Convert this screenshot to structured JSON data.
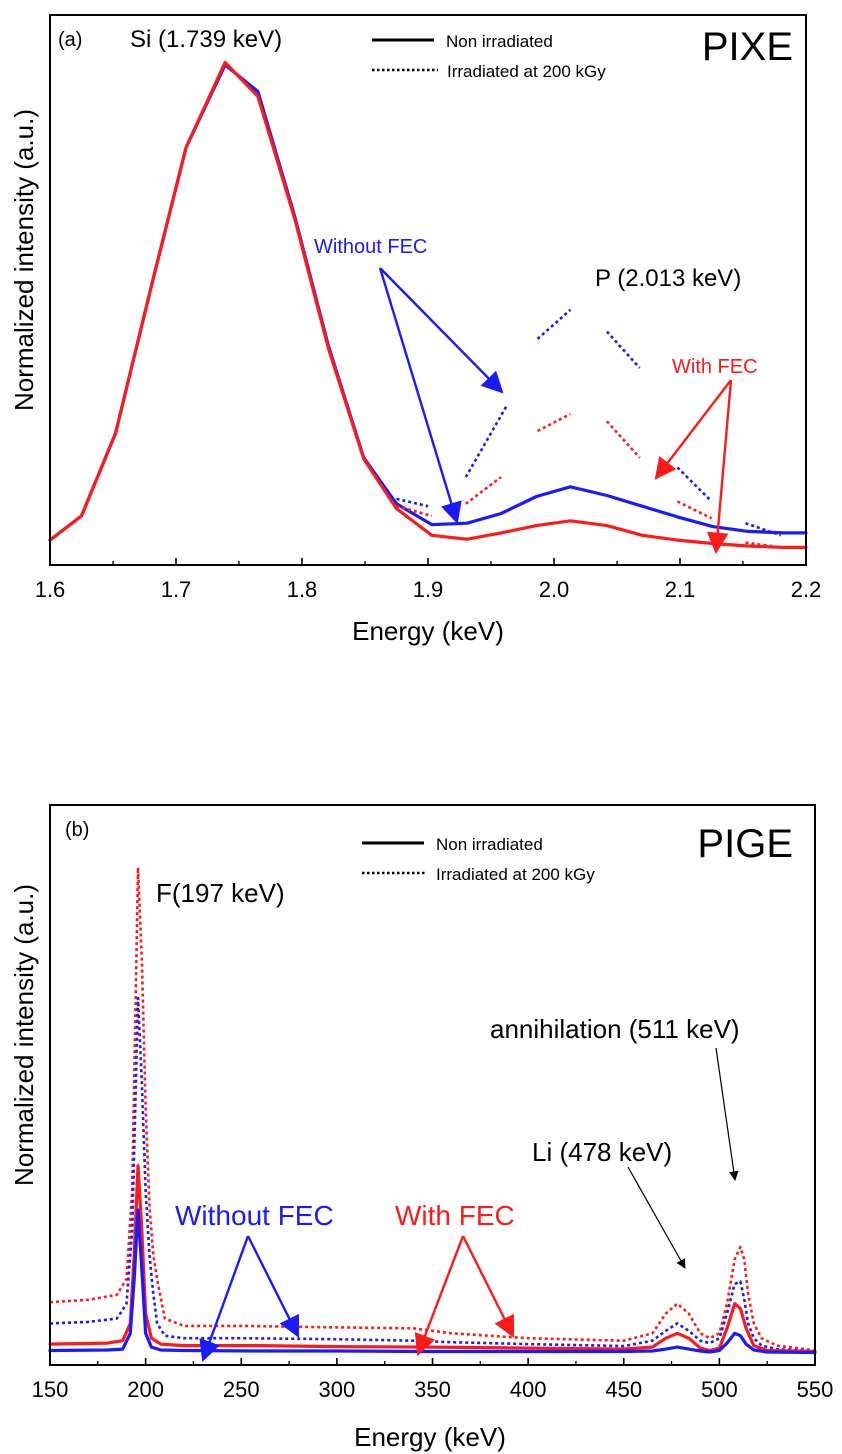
{
  "chart_data": [
    {
      "type": "line",
      "panel_label": "(a)",
      "technique_label": "PIXE",
      "xlabel": "Energy (keV)",
      "ylabel": "Normalized intensity (a.u.)",
      "xlim": [
        1.6,
        2.2
      ],
      "ylim": [
        0,
        1
      ],
      "xticks": [
        1.6,
        1.7,
        1.8,
        1.9,
        2.0,
        2.1,
        2.2
      ],
      "xtick_labels": [
        "1.6",
        "1.7",
        "1.8",
        "1.9",
        "2.0",
        "2.1",
        "2.2"
      ],
      "y_tick_labels_shown": false,
      "legend": {
        "placement": "top-center",
        "items": [
          {
            "label": "Non irradiated",
            "style": "solid"
          },
          {
            "label": "Irradiated at 200 kGy",
            "style": "dotted"
          }
        ]
      },
      "colors": {
        "without_fec": "#1a1aff",
        "with_fec": "#ff1a1a"
      },
      "series": [
        {
          "group": "Without FEC",
          "style": "solid",
          "color": "#1a1aff",
          "x": [
            1.6,
            1.625,
            1.652,
            1.681,
            1.708,
            1.739,
            1.765,
            1.794,
            1.821,
            1.849,
            1.875,
            1.903,
            1.931,
            1.958,
            1.986,
            2.013,
            2.042,
            2.07,
            2.098,
            2.126,
            2.154,
            2.182,
            2.2
          ],
          "y": [
            0.01,
            0.06,
            0.23,
            0.54,
            0.82,
            0.99,
            0.935,
            0.68,
            0.41,
            0.18,
            0.085,
            0.042,
            0.045,
            0.065,
            0.1,
            0.12,
            0.102,
            0.08,
            0.058,
            0.038,
            0.028,
            0.025,
            0.025
          ]
        },
        {
          "group": "With FEC",
          "style": "solid",
          "color": "#ff1a1a",
          "x": [
            1.6,
            1.625,
            1.652,
            1.681,
            1.708,
            1.739,
            1.765,
            1.794,
            1.821,
            1.849,
            1.875,
            1.903,
            1.931,
            1.958,
            1.986,
            2.013,
            2.042,
            2.07,
            2.098,
            2.126,
            2.154,
            2.182,
            2.2
          ],
          "y": [
            0.01,
            0.06,
            0.23,
            0.54,
            0.82,
            0.995,
            0.925,
            0.675,
            0.405,
            0.178,
            0.075,
            0.02,
            0.012,
            0.025,
            0.04,
            0.05,
            0.04,
            0.02,
            0.01,
            0.003,
            -0.002,
            -0.005,
            -0.005
          ]
        },
        {
          "group": "Without FEC",
          "style": "dotted",
          "color": "#1a1aff",
          "segments": [
            {
              "x": [
                1.875,
                1.9
              ],
              "y": [
                0.095,
                0.08
              ]
            },
            {
              "x": [
                1.93,
                1.962
              ],
              "y": [
                0.14,
                0.285
              ]
            },
            {
              "x": [
                1.987,
                2.013
              ],
              "y": [
                0.425,
                0.485
              ]
            },
            {
              "x": [
                2.042,
                2.068
              ],
              "y": [
                0.44,
                0.365
              ]
            },
            {
              "x": [
                2.098,
                2.125
              ],
              "y": [
                0.16,
                0.09
              ]
            },
            {
              "x": [
                2.152,
                2.18
              ],
              "y": [
                0.045,
                0.02
              ]
            }
          ]
        },
        {
          "group": "With FEC",
          "style": "dotted",
          "color": "#ff1a1a",
          "segments": [
            {
              "x": [
                1.875,
                1.903
              ],
              "y": [
                0.08,
                0.06
              ]
            },
            {
              "x": [
                1.93,
                1.958
              ],
              "y": [
                0.085,
                0.14
              ]
            },
            {
              "x": [
                1.987,
                2.013
              ],
              "y": [
                0.235,
                0.27
              ]
            },
            {
              "x": [
                2.042,
                2.068
              ],
              "y": [
                0.255,
                0.18
              ]
            },
            {
              "x": [
                2.098,
                2.125
              ],
              "y": [
                0.09,
                0.055
              ]
            },
            {
              "x": [
                2.152,
                2.18
              ],
              "y": [
                0.005,
                -0.005
              ]
            }
          ]
        }
      ],
      "annotations": [
        {
          "text": "Si (1.739 keV)",
          "color": "#000000"
        },
        {
          "text": "P (2.013 keV)",
          "color": "#000000"
        },
        {
          "text": "Without FEC",
          "color": "#1a1aff"
        },
        {
          "text": "With FEC",
          "color": "#ff1a1a"
        }
      ]
    },
    {
      "type": "line",
      "panel_label": "(b)",
      "technique_label": "PIGE",
      "xlabel": "Energy (keV)",
      "ylabel": "Normalized intensity (a.u.)",
      "xlim": [
        150,
        550
      ],
      "ylim": [
        0,
        1
      ],
      "xticks": [
        150,
        200,
        250,
        300,
        350,
        400,
        450,
        500,
        550
      ],
      "xtick_labels": [
        "150",
        "200",
        "250",
        "300",
        "350",
        "400",
        "450",
        "500",
        "550"
      ],
      "y_tick_labels_shown": false,
      "legend": {
        "placement": "top-center",
        "items": [
          {
            "label": "Non irradiated",
            "style": "solid"
          },
          {
            "label": "Irradiated at 200 kGy",
            "style": "dotted"
          }
        ]
      },
      "colors": {
        "without_fec": "#1a1aff",
        "with_fec": "#ff1a1a"
      },
      "series": [
        {
          "group": "With FEC",
          "style": "dotted",
          "color": "#ff1a1a",
          "x": [
            150,
            170,
            185,
            190,
            193,
            196,
            198,
            200,
            202,
            204,
            206,
            210,
            220,
            250,
            300,
            340,
            360,
            400,
            450,
            465,
            472,
            478,
            484,
            490,
            495,
            500,
            504,
            508,
            511,
            513,
            515,
            518,
            522,
            530,
            550
          ],
          "y": [
            0.103,
            0.108,
            0.118,
            0.15,
            0.33,
            0.985,
            0.8,
            0.5,
            0.3,
            0.2,
            0.15,
            0.07,
            0.055,
            0.055,
            0.052,
            0.05,
            0.04,
            0.03,
            0.025,
            0.04,
            0.08,
            0.1,
            0.08,
            0.04,
            0.03,
            0.04,
            0.1,
            0.19,
            0.215,
            0.19,
            0.12,
            0.06,
            0.03,
            0.015,
            0.005
          ]
        },
        {
          "group": "Without FEC",
          "style": "dotted",
          "color": "#1a1aff",
          "x": [
            150,
            170,
            185,
            190,
            193,
            196,
            198,
            200,
            202,
            204,
            206,
            210,
            220,
            250,
            300,
            340,
            360,
            400,
            450,
            465,
            472,
            478,
            484,
            490,
            495,
            500,
            504,
            508,
            511,
            513,
            515,
            518,
            522,
            530,
            550
          ],
          "y": [
            0.06,
            0.063,
            0.07,
            0.1,
            0.25,
            0.72,
            0.55,
            0.33,
            0.2,
            0.12,
            0.06,
            0.035,
            0.03,
            0.03,
            0.028,
            0.025,
            0.022,
            0.018,
            0.014,
            0.025,
            0.045,
            0.06,
            0.045,
            0.025,
            0.02,
            0.03,
            0.08,
            0.14,
            0.145,
            0.11,
            0.06,
            0.03,
            0.015,
            0.008,
            0.003
          ]
        },
        {
          "group": "With FEC",
          "style": "solid",
          "color": "#ff1a1a",
          "x": [
            150,
            180,
            188,
            192,
            194,
            196,
            198,
            200,
            203,
            208,
            220,
            260,
            300,
            350,
            400,
            450,
            465,
            472,
            478,
            484,
            490,
            495,
            500,
            504,
            508,
            511,
            514,
            518,
            525,
            550
          ],
          "y": [
            0.018,
            0.02,
            0.025,
            0.06,
            0.2,
            0.38,
            0.25,
            0.08,
            0.03,
            0.018,
            0.015,
            0.015,
            0.013,
            0.012,
            0.01,
            0.008,
            0.012,
            0.03,
            0.04,
            0.03,
            0.01,
            0.005,
            0.01,
            0.05,
            0.1,
            0.09,
            0.05,
            0.015,
            0.005,
            0.003
          ]
        },
        {
          "group": "Without FEC",
          "style": "solid",
          "color": "#1a1aff",
          "x": [
            150,
            180,
            188,
            192,
            194,
            196,
            198,
            200,
            203,
            208,
            220,
            260,
            300,
            350,
            400,
            450,
            465,
            472,
            478,
            484,
            490,
            495,
            500,
            504,
            508,
            511,
            514,
            518,
            525,
            550
          ],
          "y": [
            0.005,
            0.006,
            0.008,
            0.04,
            0.15,
            0.29,
            0.17,
            0.04,
            0.012,
            0.006,
            0.005,
            0.004,
            0.004,
            0.003,
            0.003,
            0.003,
            0.004,
            0.008,
            0.012,
            0.008,
            0.004,
            0.002,
            0.005,
            0.02,
            0.04,
            0.035,
            0.018,
            0.006,
            0.002,
            0.001
          ]
        }
      ],
      "annotations": [
        {
          "text": "F(197 keV)",
          "color": "#000000"
        },
        {
          "text": "annihilation (511 keV)",
          "color": "#000000"
        },
        {
          "text": "Li (478 keV)",
          "color": "#000000"
        },
        {
          "text": "Without FEC",
          "color": "#1a1aff"
        },
        {
          "text": "With FEC",
          "color": "#ff1a1a"
        }
      ]
    }
  ]
}
